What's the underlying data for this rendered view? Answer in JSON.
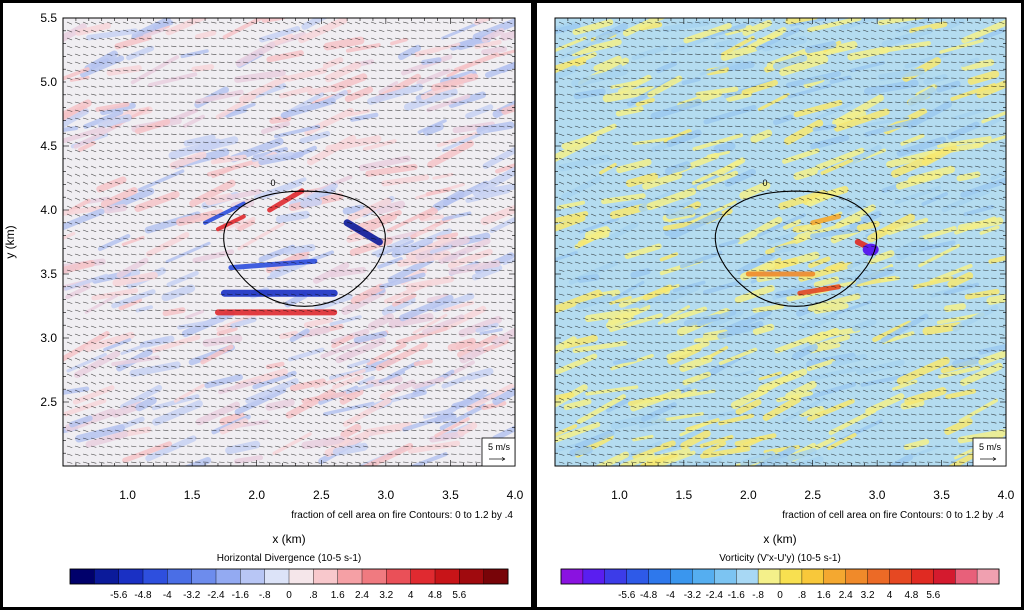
{
  "chart_data": [
    {
      "type": "heatmap",
      "title": "Horizontal Divergence  (10-5 s-1)",
      "xlabel": "x (km)",
      "ylabel": "y (km)",
      "xlim": [
        0.5,
        4.0
      ],
      "ylim": [
        2.0,
        5.5
      ],
      "x_ticks": [
        "1.0",
        "1.5",
        "2.0",
        "2.5",
        "3.0",
        "3.5",
        "4.0"
      ],
      "y_ticks": [
        "2.5",
        "3.0",
        "3.5",
        "4.0",
        "4.5",
        "5.0",
        "5.5"
      ],
      "contour_info": "fraction of cell area on fire Contours: 0 to 1.2 by .4",
      "contour_label": "0",
      "reference_vector": "5 m/s",
      "colorbar_labels": [
        "-5.6",
        "-4.8",
        "-4",
        "-3.2",
        "-2.4",
        "-1.6",
        "-.8",
        "0",
        ".8",
        "1.6",
        "2.4",
        "3.2",
        "4",
        "4.8",
        "5.6"
      ],
      "colorbar_colors": [
        "#00006b",
        "#0b1a9a",
        "#1a30c4",
        "#2e4fde",
        "#4a6ee6",
        "#6d8ced",
        "#93aaf2",
        "#b8c6f5",
        "#dce3f8",
        "#f5e6ea",
        "#f8c8cc",
        "#f5a0a5",
        "#f07a80",
        "#ea5058",
        "#e02a30",
        "#c81418",
        "#a00a0e",
        "#780408"
      ]
    },
    {
      "type": "heatmap",
      "title": "Vorticity (V'x-U'y)  (10-5 s-1)",
      "xlabel": "x (km)",
      "ylabel": "",
      "xlim": [
        0.5,
        4.0
      ],
      "ylim": [
        2.0,
        5.5
      ],
      "x_ticks": [
        "1.0",
        "1.5",
        "2.0",
        "2.5",
        "3.0",
        "3.5",
        "4.0"
      ],
      "contour_info": "fraction of cell area on fire Contours: 0 to 1.2 by .4",
      "contour_label": "0",
      "reference_vector": "5 m/s",
      "colorbar_labels": [
        "-5.6",
        "-4.8",
        "-4",
        "-3.2",
        "-2.4",
        "-1.6",
        "-.8",
        "0",
        ".8",
        "1.6",
        "2.4",
        "3.2",
        "4",
        "4.8",
        "5.6"
      ],
      "colorbar_colors": [
        "#8a12e0",
        "#5a1ef0",
        "#3c3ce8",
        "#2e5ae8",
        "#2e78ec",
        "#3a96ee",
        "#55aef0",
        "#7cc4f2",
        "#a8d8f4",
        "#f4f08a",
        "#f8e050",
        "#f8c83a",
        "#f4a830",
        "#f08a2a",
        "#ec6a26",
        "#e64822",
        "#e02a22",
        "#d41a2e",
        "#e8607a",
        "#f0a0b0"
      ]
    }
  ]
}
